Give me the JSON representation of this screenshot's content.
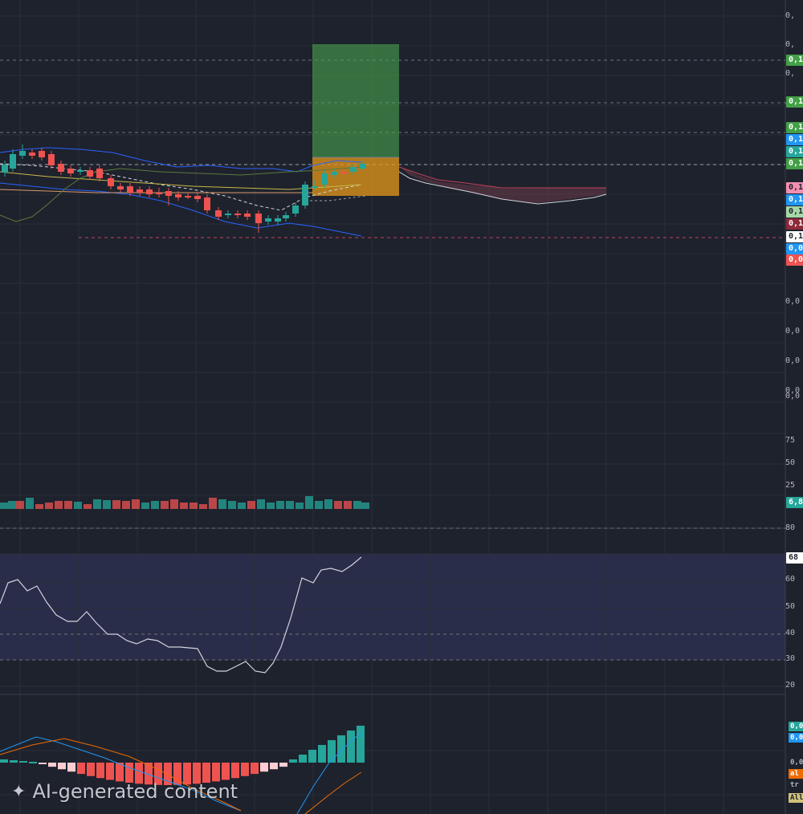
{
  "colors": {
    "background": "#1e222d",
    "grid": "#2a2e39",
    "up": "#26a69a",
    "down": "#ef5350",
    "bollinger": "#2962ff",
    "rsi_band": "#2a2d4a",
    "target_zone": "#4caf50",
    "stop_zone": "#e69a19",
    "cloud": "#6b3a48"
  },
  "price_axis": {
    "labels": [
      "0,",
      "0,",
      "0,",
      "0,",
      "0,0",
      "0,0",
      "0,0",
      "0,0",
      "0,0"
    ]
  },
  "price_tags": [
    {
      "text": "0,1",
      "color": "#43a047",
      "text_color": "#ffffff"
    },
    {
      "text": "0,1",
      "color": "#43a047",
      "text_color": "#ffffff"
    },
    {
      "text": "0,1",
      "color": "#43a047",
      "text_color": "#ffffff"
    },
    {
      "text": "0,1",
      "color": "#2196f3",
      "text_color": "#ffffff"
    },
    {
      "text": "0,1",
      "color": "#26a69a",
      "text_color": "#ffffff"
    },
    {
      "text": "0,1",
      "color": "#43a047",
      "text_color": "#ffffff"
    },
    {
      "text": "0,1",
      "color": "#f48fb1",
      "text_color": "#1e222d"
    },
    {
      "text": "0,1",
      "color": "#2196f3",
      "text_color": "#ffffff"
    },
    {
      "text": "0,1",
      "color": "#a5d6a7",
      "text_color": "#1e222d"
    },
    {
      "text": "0,1",
      "color": "#8e2a3a",
      "text_color": "#ffffff"
    },
    {
      "text": "0,1",
      "color": "#ffffff",
      "text_color": "#1e222d"
    },
    {
      "text": "0,0",
      "color": "#2196f3",
      "text_color": "#ffffff"
    },
    {
      "text": "0,0",
      "color": "#ef5350",
      "text_color": "#ffffff"
    }
  ],
  "volume_axis": {
    "labels": [
      "75",
      "50",
      "25"
    ],
    "current": "6,8"
  },
  "rsi_axis": {
    "labels": [
      "80",
      "60",
      "50",
      "40",
      "30",
      "20"
    ],
    "current": "68"
  },
  "macd_axis": {
    "tags": [
      {
        "text": "0,0",
        "color": "#26a69a",
        "text_color": "#ffffff"
      },
      {
        "text": "0,0",
        "color": "#2196f3",
        "text_color": "#ffffff"
      },
      {
        "text": "0,0",
        "color": "#1e222d",
        "text_color": "#b2b5be"
      },
      {
        "text": "al",
        "color": "#ef6c00",
        "text_color": "#ffffff"
      },
      {
        "text": "tr",
        "color": "#1e222d",
        "text_color": "#b2b5be"
      },
      {
        "text": "All",
        "color": "#d1c27a",
        "text_color": "#1e222d"
      }
    ]
  },
  "watermark": {
    "icon": "sparkle-icon",
    "text": "AI-generated content"
  }
}
